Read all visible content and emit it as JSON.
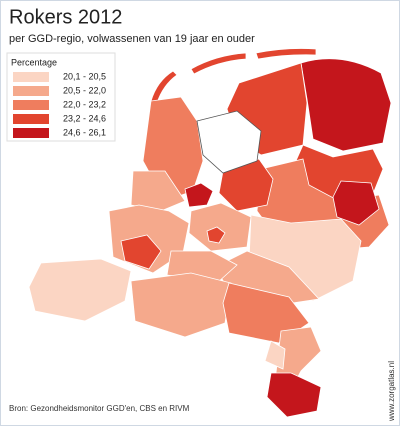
{
  "header": {
    "title": "Rokers 2012",
    "subtitle": "per GGD-regio, volwassenen van 19 jaar en ouder"
  },
  "legend": {
    "title": "Percentage",
    "classes": [
      {
        "label": "20,1 - 20,5",
        "color": "#fbd5c3"
      },
      {
        "label": "20,5 - 22,0",
        "color": "#f5a98c"
      },
      {
        "label": "22,0 - 23,2",
        "color": "#ef7d5e"
      },
      {
        "label": "23,2 - 24,6",
        "color": "#e2452f"
      },
      {
        "label": "24,6 - 26,1",
        "color": "#c4161c"
      }
    ]
  },
  "footer": {
    "source": "Bron: Gezondheidsmonitor GGD'en, CBS en RIVM",
    "site": "www.zorgatlas.nl"
  }
}
